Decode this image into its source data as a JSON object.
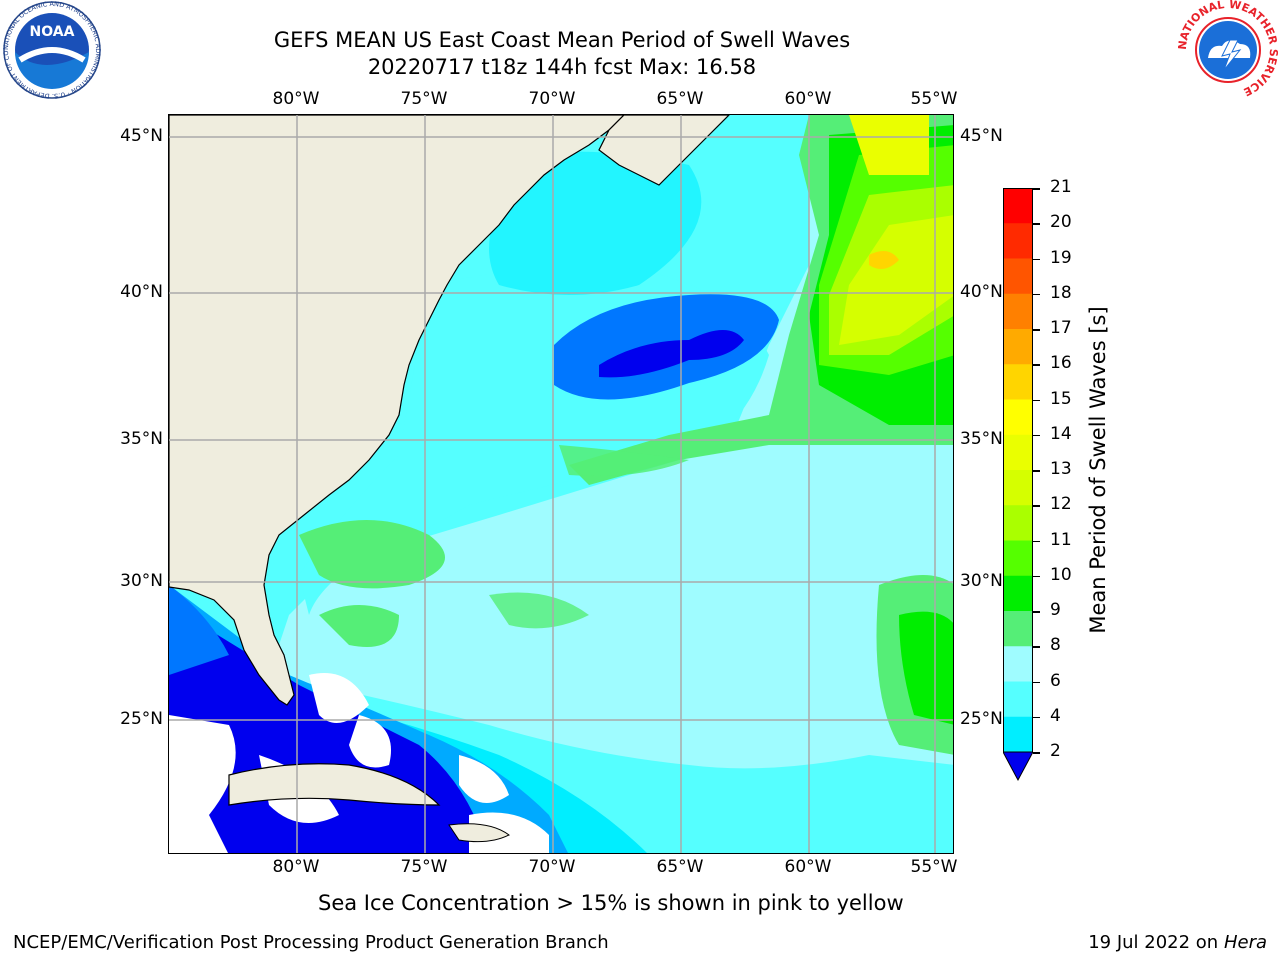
{
  "title": {
    "line1": "GEFS MEAN US East Coast Mean Period of Swell Waves",
    "line2": "20220717 t18z 144h fcst   Max: 16.58"
  },
  "map": {
    "lon_labels": [
      "80°W",
      "75°W",
      "70°W",
      "65°W",
      "60°W",
      "55°W"
    ],
    "lat_labels": [
      "45°N",
      "40°N",
      "35°N",
      "30°N",
      "25°N"
    ],
    "colors": {
      "land": "#efedde",
      "ocean_base": "#9ffcff",
      "grid": "#aaaaaa",
      "coast": "#000000"
    }
  },
  "colorbar": {
    "title": "Mean Period of Swell Waves [s]",
    "ticks": [
      "21",
      "20",
      "19",
      "18",
      "17",
      "16",
      "15",
      "14",
      "13",
      "12",
      "11",
      "10",
      "9",
      "8",
      "6",
      "4",
      "2"
    ],
    "colors": [
      "#ff0000",
      "#ff2a00",
      "#ff5500",
      "#ff8000",
      "#ffaa00",
      "#ffd500",
      "#ffff00",
      "#eaff00",
      "#d5ff00",
      "#aaff00",
      "#55ff00",
      "#00ee00",
      "#55ee77",
      "#9ffcff",
      "#55ffff",
      "#00eeff",
      "#00aaff",
      "#0077ff",
      "#0000ee"
    ]
  },
  "note": "Sea Ice Concentration > 15% is shown in pink to yellow",
  "footer": {
    "left": "NCEP/EMC/Verification Post Processing Product Generation Branch",
    "date": "19 Jul 2022 on ",
    "host": "Hera"
  },
  "logos": {
    "noaa": "NOAA",
    "noaa_ring": "NATIONAL OCEANIC AND ATMOSPHERIC ADMINISTRATION · U.S. DEPARTMENT OF COMMERCE",
    "nws_ring": "NATIONAL WEATHER SERVICE"
  }
}
